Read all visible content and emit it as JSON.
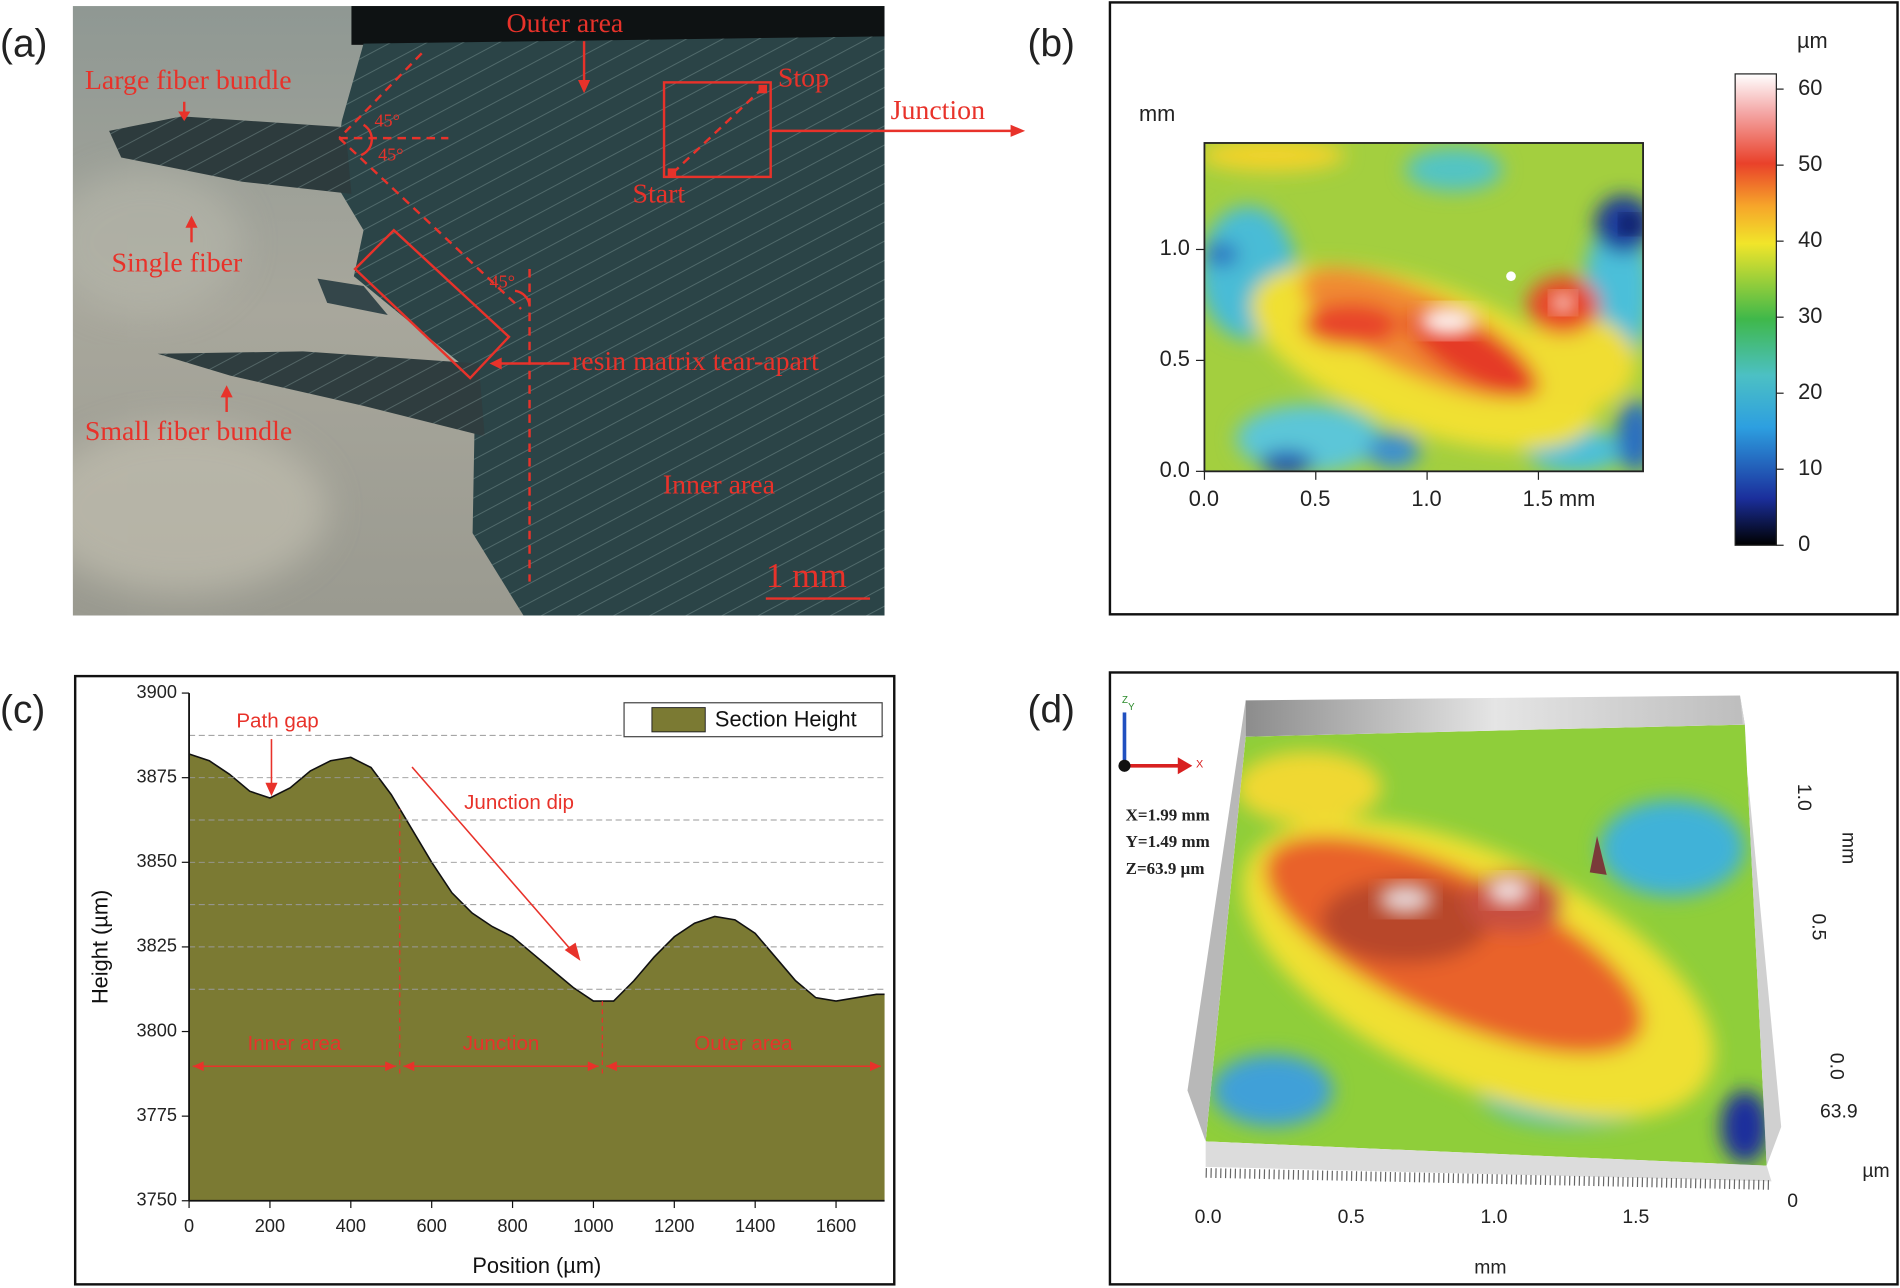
{
  "panel_labels": [
    "(a)",
    "(b)",
    "(c)",
    "(d)"
  ],
  "photo": {
    "annotations": [
      "Outer area",
      "Large fiber bundle",
      "Stop",
      "Junction",
      "45°",
      "45°",
      "45°",
      "Start",
      "Single fiber",
      "resin matrix tear-apart",
      "Small fiber bundle",
      "Inner area",
      "1 mm"
    ]
  },
  "chart_data": [
    {
      "type": "heatmap",
      "y_label": "mm",
      "xlim": [
        0,
        1.97
      ],
      "ylim": [
        0,
        1.48
      ],
      "xticks": [
        {
          "value": 0,
          "label": "0.0"
        },
        {
          "value": 0.5,
          "label": "0.5"
        },
        {
          "value": 1,
          "label": "1.0"
        },
        {
          "value": 1.5,
          "label": "1.5 mm"
        }
      ],
      "yticks": [
        {
          "value": 0,
          "label": "0.0"
        },
        {
          "value": 0.5,
          "label": "0.5"
        },
        {
          "value": 1,
          "label": "1.0"
        }
      ],
      "colorbar": {
        "title": "µm",
        "lim": [
          0,
          62
        ],
        "ticks": [
          0,
          10,
          20,
          30,
          40,
          50,
          60
        ]
      }
    },
    {
      "type": "area",
      "x_label": "Position (µm)",
      "y_label": "Height (µm)",
      "x": [
        0,
        50,
        100,
        150,
        200,
        250,
        300,
        350,
        400,
        450,
        500,
        550,
        600,
        650,
        700,
        750,
        800,
        850,
        900,
        950,
        1000,
        1050,
        1100,
        1150,
        1200,
        1250,
        1300,
        1350,
        1400,
        1450,
        1500,
        1550,
        1600,
        1650,
        1700,
        1720
      ],
      "series": [
        {
          "name": "Section Height",
          "color": "#7b7a33",
          "values": [
            3882,
            3880,
            3876,
            3871,
            3869,
            3872,
            3877,
            3880,
            3881,
            3878,
            3870,
            3860,
            3850,
            3841,
            3835,
            3831,
            3828,
            3823,
            3818,
            3813,
            3809,
            3809,
            3815,
            3822,
            3828,
            3832,
            3834,
            3833,
            3829,
            3822,
            3815,
            3810,
            3809,
            3810,
            3811,
            3811
          ]
        }
      ],
      "xlim": [
        0,
        1720
      ],
      "ylim": [
        3750,
        3900
      ],
      "xticks": [
        0,
        200,
        400,
        600,
        800,
        1000,
        1200,
        1400,
        1600
      ],
      "yticks": [
        3750,
        3775,
        3800,
        3825,
        3850,
        3875,
        3900
      ],
      "hlines": [
        3887.5,
        3875,
        3862.5,
        3850,
        3837.5,
        3825,
        3812.5
      ],
      "regions": [
        {
          "label": "Inner area",
          "start": 0,
          "end": 521
        },
        {
          "label": "Junction",
          "start": 521,
          "end": 1022
        },
        {
          "label": "Outer area",
          "start": 1022,
          "end": 1720
        }
      ],
      "annotations": [
        "Path gap",
        "Junction dip"
      ],
      "legend": "upper right"
    }
  ],
  "surface": {
    "info": [
      "X=1.99 mm",
      "Y=1.49 mm",
      "Z=63.9 µm"
    ],
    "axes": [
      "Z",
      "Y",
      "X"
    ],
    "x_ticks": [
      "0.0",
      "0.5",
      "1.0",
      "1.5"
    ],
    "x_label": "mm",
    "y_ticks": [
      "1.0",
      "0.5",
      "0.0"
    ],
    "y_label": "mm",
    "z_max": "63.9",
    "z_label": "µm",
    "z_min": "0"
  }
}
